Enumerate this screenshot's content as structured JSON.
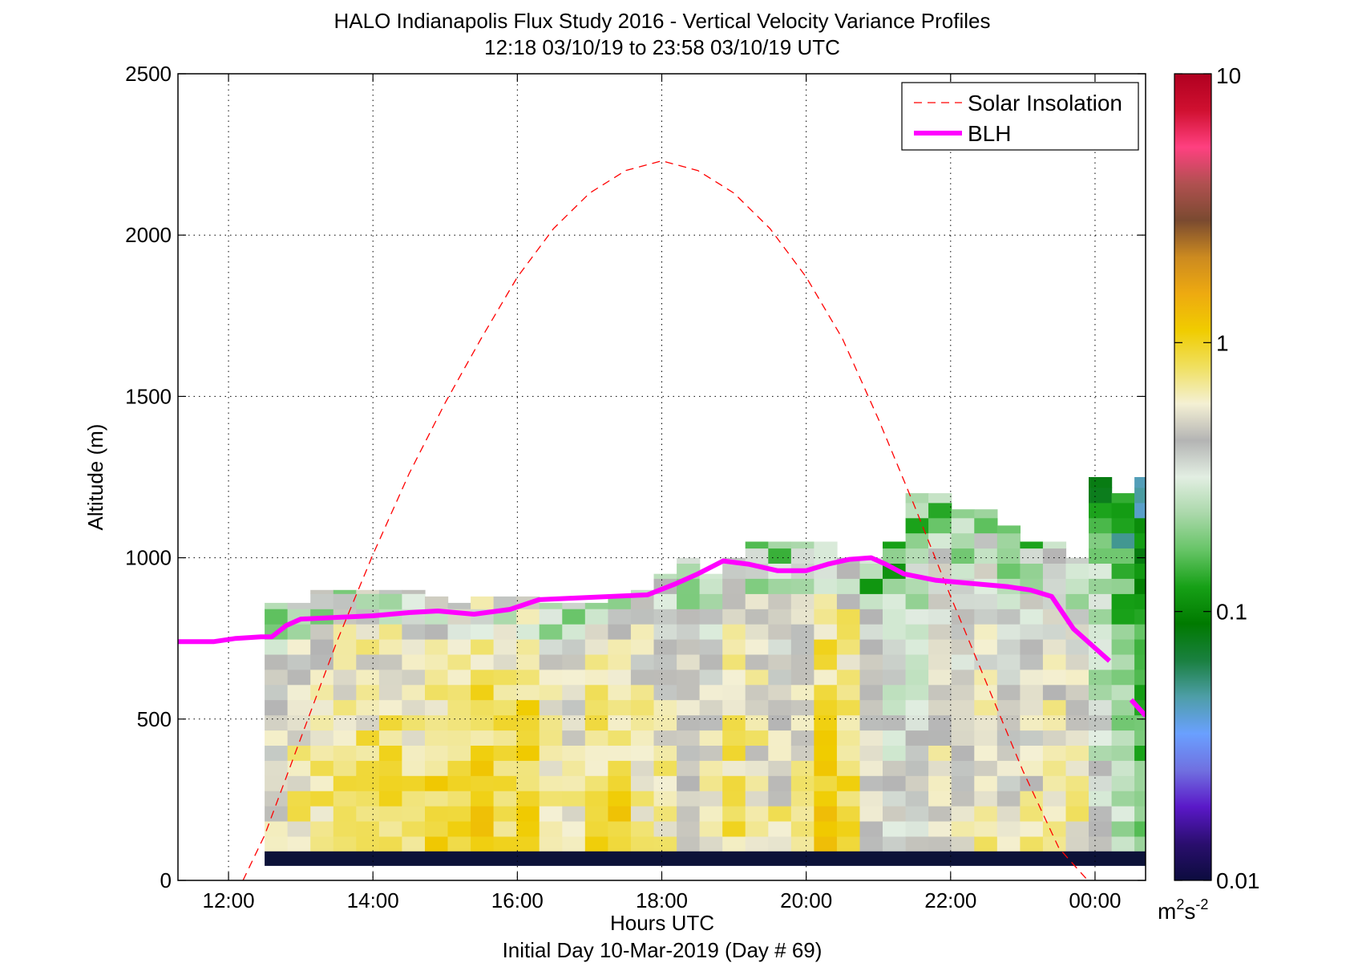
{
  "chart_data": {
    "type": "heatmap",
    "title": "HALO Indianapolis Flux Study 2016 - Vertical Velocity Variance Profiles",
    "subtitle": "12:18 03/10/19 to 23:58 03/10/19  UTC",
    "xlabel": "Hours UTC",
    "xlabel2": "Initial Day 10-Mar-2019 (Day # 69)",
    "ylabel": "Altitude (m)",
    "xlim": [
      11.3,
      24.7
    ],
    "ylim": [
      0,
      2500
    ],
    "x_ticks": [
      12,
      14,
      16,
      18,
      20,
      22,
      24
    ],
    "x_tick_labels": [
      "12:00",
      "14:00",
      "16:00",
      "18:00",
      "20:00",
      "22:00",
      "00:00"
    ],
    "y_ticks": [
      0,
      500,
      1000,
      1500,
      2000,
      2500
    ],
    "y_tick_labels": [
      "0",
      "500",
      "1000",
      "1500",
      "2000",
      "2500"
    ],
    "grid": true,
    "legend_position": "top-right",
    "legend": [
      {
        "name": "Solar Insolation",
        "color": "#ff0000",
        "style": "dashed"
      },
      {
        "name": "BLH",
        "color": "#ff00ff",
        "style": "solid"
      }
    ],
    "colorbar": {
      "scale": "log",
      "range": [
        0.01,
        10
      ],
      "tick_values": [
        0.01,
        0.1,
        1,
        10
      ],
      "tick_labels": [
        "0.01",
        "0.1",
        "1",
        "10"
      ],
      "unit_base": "m",
      "unit_sup1": "2",
      "unit_mid": "s",
      "unit_sup2": "-2",
      "stops": [
        "#0c0c3e",
        "#2a0e6e",
        "#5a18c8",
        "#7070e0",
        "#6aa0ff",
        "#4e9ea8",
        "#1a8040",
        "#007a00",
        "#16a016",
        "#66c466",
        "#aad8aa",
        "#e2eee2",
        "#b4b4b4",
        "#f4f0d4",
        "#f0e060",
        "#f0cc00",
        "#eeaa10",
        "#cc8a20",
        "#7a4a30",
        "#b05050",
        "#ff4080",
        "#d01030",
        "#b00020"
      ]
    },
    "cells": {
      "x_start": 12.5,
      "bin_hours": 0.317,
      "bin_meters": 47,
      "bottom_band_m": [
        45,
        90
      ],
      "bottom_band_color": "#0c1238",
      "cols_bottom_alt": 90,
      "tops_m": [
        860,
        860,
        900,
        900,
        900,
        900,
        900,
        880,
        860,
        880,
        880,
        880,
        860,
        860,
        860,
        880,
        900,
        950,
        1000,
        950,
        1000,
        1050,
        1050,
        1050,
        1050,
        1000,
        1000,
        1050,
        1200,
        1200,
        1150,
        1150,
        1100,
        1050,
        1050,
        1000,
        1250,
        1200,
        1250,
        1050
      ],
      "profile_values": [
        0.5,
        0.6,
        0.65,
        0.7,
        0.75,
        0.8,
        0.75,
        0.85,
        0.7,
        0.9,
        0.8,
        0.95,
        0.6,
        0.55,
        0.75,
        0.8,
        0.65,
        0.6,
        0.5,
        0.55,
        0.7,
        0.6,
        0.55,
        0.55,
        0.9,
        0.85,
        0.45,
        0.35,
        0.35,
        0.5,
        0.45,
        0.55,
        0.45,
        0.5,
        0.6,
        0.55,
        0.3,
        0.2,
        0.15,
        0.12
      ]
    },
    "series": [
      {
        "name": "Solar Insolation",
        "x": [
          12.2,
          12.5,
          13,
          13.5,
          14,
          14.5,
          15,
          15.5,
          16,
          16.5,
          17,
          17.5,
          18,
          18.5,
          19,
          19.5,
          20,
          20.5,
          21,
          21.5,
          22,
          22.5,
          23,
          23.5,
          23.9
        ],
        "y": [
          0,
          140,
          440,
          740,
          1010,
          1260,
          1480,
          1680,
          1870,
          2020,
          2130,
          2200,
          2230,
          2200,
          2130,
          2020,
          1870,
          1680,
          1430,
          1160,
          880,
          610,
          340,
          100,
          0
        ]
      },
      {
        "name": "BLH",
        "x": [
          11.3,
          11.8,
          12.1,
          12.45,
          12.6,
          12.8,
          13.0,
          13.5,
          14.0,
          14.5,
          14.9,
          15.4,
          15.9,
          16.3,
          16.8,
          17.3,
          17.8,
          18.2,
          18.5,
          18.85,
          19.2,
          19.6,
          20.0,
          20.3,
          20.6,
          20.9,
          21.1,
          21.35,
          21.8,
          22.3,
          22.8,
          23.1,
          23.4,
          23.7,
          23.95,
          24.2,
          24.5,
          24.7
        ],
        "y": [
          740,
          740,
          750,
          755,
          755,
          790,
          810,
          815,
          820,
          830,
          835,
          825,
          840,
          870,
          875,
          880,
          885,
          920,
          950,
          990,
          980,
          960,
          960,
          980,
          995,
          1000,
          980,
          950,
          930,
          920,
          910,
          900,
          880,
          780,
          730,
          680,
          560,
          510
        ]
      }
    ]
  }
}
